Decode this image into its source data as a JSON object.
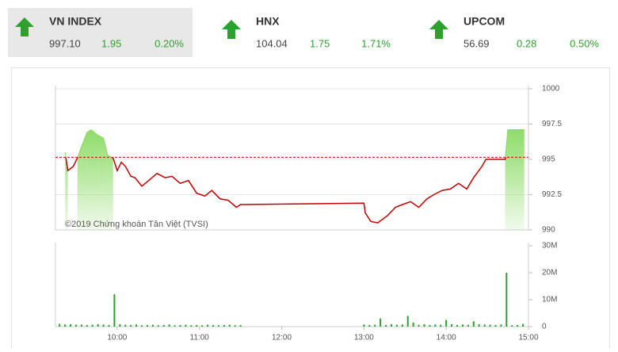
{
  "indices": [
    {
      "name": "VN INDEX",
      "value": "997.10",
      "change": "1.95",
      "percent": "0.20%"
    },
    {
      "name": "HNX",
      "value": "104.04",
      "change": "1.75",
      "percent": "1.71%"
    },
    {
      "name": "UPCOM",
      "value": "56.69",
      "change": "0.28",
      "percent": "0.50%"
    }
  ],
  "chart_data": [
    {
      "type": "line",
      "annotation": "©2019 Chứng khoán Tân Việt (TVSI)",
      "x": [
        562,
        564,
        568,
        571,
        574,
        578,
        581,
        586,
        590,
        593,
        597,
        600,
        603,
        606,
        610,
        613,
        618,
        623,
        629,
        635,
        640,
        646,
        652,
        658,
        664,
        669,
        675,
        681,
        687,
        690,
        780,
        781,
        785,
        790,
        797,
        803,
        808,
        814,
        820,
        826,
        831,
        837,
        843,
        849,
        855,
        860,
        866,
        869,
        883,
        885,
        897
      ],
      "values": [
        995.5,
        994.2,
        994.5,
        995.1,
        995.9,
        996.9,
        997.1,
        996.7,
        996.5,
        995.3,
        995.1,
        994.2,
        994.8,
        994.5,
        993.8,
        993.7,
        993.1,
        993.5,
        994.0,
        993.7,
        993.8,
        993.3,
        993.5,
        992.6,
        992.4,
        992.8,
        992.2,
        992.1,
        991.6,
        991.8,
        991.9,
        991.2,
        990.6,
        990.5,
        991.0,
        991.6,
        991.8,
        992.0,
        991.6,
        992.2,
        992.5,
        992.8,
        992.9,
        993.3,
        992.9,
        993.7,
        994.5,
        995.0,
        995.0,
        997.1,
        997.1
      ],
      "reference_line": 995.15,
      "color": "#c00000",
      "fill_color": "#8fdc6a",
      "reference_color": "#c00000",
      "xlim": [
        555,
        900
      ],
      "ylim": [
        990,
        1000
      ],
      "yticks": [
        990,
        992.5,
        995,
        997.5,
        1000
      ],
      "grid": true
    },
    {
      "type": "bar",
      "x": [
        558,
        562,
        566,
        570,
        574,
        578,
        582,
        586,
        590,
        594,
        598,
        602,
        606,
        610,
        614,
        618,
        622,
        626,
        630,
        634,
        638,
        642,
        646,
        650,
        654,
        658,
        662,
        666,
        670,
        674,
        678,
        682,
        686,
        690,
        780,
        784,
        788,
        792,
        796,
        800,
        804,
        808,
        812,
        816,
        820,
        824,
        828,
        832,
        836,
        840,
        844,
        848,
        852,
        856,
        860,
        864,
        868,
        872,
        876,
        880,
        884,
        888,
        892,
        896
      ],
      "values": [
        1000000,
        800000,
        900000,
        700000,
        800000,
        600000,
        700000,
        900000,
        800000,
        600000,
        12000000,
        900000,
        700000,
        600000,
        800000,
        500000,
        600000,
        700000,
        500000,
        600000,
        800000,
        500000,
        600000,
        700000,
        500000,
        600000,
        500000,
        700000,
        600000,
        500000,
        600000,
        700000,
        500000,
        600000,
        800000,
        600000,
        700000,
        3000000,
        600000,
        900000,
        700000,
        800000,
        4000000,
        1500000,
        700000,
        900000,
        600000,
        800000,
        700000,
        2500000,
        900000,
        600000,
        800000,
        700000,
        2000000,
        900000,
        800000,
        700000,
        600000,
        800000,
        20000000,
        500000,
        600000,
        1000000
      ],
      "color": "#2e9e2e",
      "xlim": [
        555,
        900
      ],
      "xticks": [
        {
          "value": 600,
          "label": "10:00"
        },
        {
          "value": 660,
          "label": "11:00"
        },
        {
          "value": 720,
          "label": "12:00"
        },
        {
          "value": 780,
          "label": "13:00"
        },
        {
          "value": 840,
          "label": "14:00"
        },
        {
          "value": 900,
          "label": "15:00"
        }
      ],
      "ylim": [
        0,
        30000000
      ],
      "yticks": [
        0,
        {
          "value": 10000000,
          "label": "10M"
        },
        {
          "value": 20000000,
          "label": "20M"
        },
        {
          "value": 30000000,
          "label": "30M"
        }
      ]
    }
  ]
}
